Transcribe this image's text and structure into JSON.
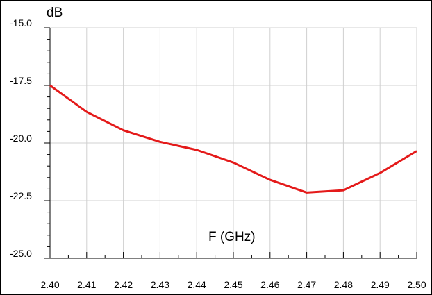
{
  "chart_data": {
    "type": "line",
    "xlabel": "F (GHz)",
    "ylabel": "dB",
    "xlim": [
      2.4,
      2.5
    ],
    "ylim": [
      -25.0,
      -15.0
    ],
    "x_tick_labels": [
      "2.40",
      "2.41",
      "2.42",
      "2.43",
      "2.44",
      "2.45",
      "2.46",
      "2.47",
      "2.48",
      "2.49",
      "2.50"
    ],
    "y_tick_labels": [
      "-15.0",
      "-17.5",
      "-20.0",
      "-22.5",
      "-25.0"
    ],
    "grid": true,
    "series": [
      {
        "color": "#e41a1a",
        "x": [
          2.4,
          2.41,
          2.42,
          2.43,
          2.44,
          2.45,
          2.46,
          2.47,
          2.48,
          2.49,
          2.5
        ],
        "y": [
          -17.5,
          -18.65,
          -19.45,
          -19.95,
          -20.3,
          -20.85,
          -21.6,
          -22.15,
          -22.05,
          -21.3,
          -20.35
        ]
      }
    ]
  }
}
